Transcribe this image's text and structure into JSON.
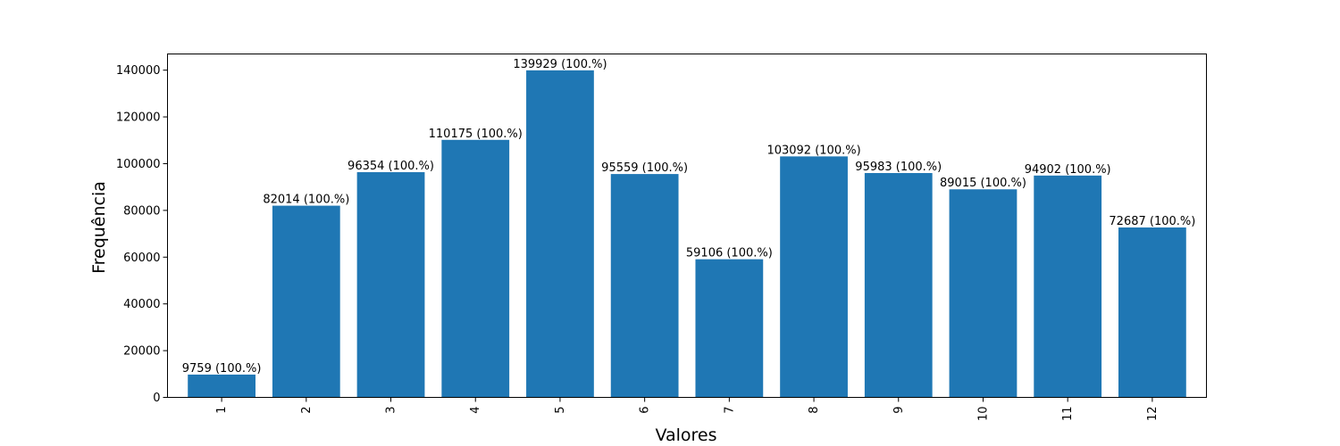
{
  "chart_data": {
    "type": "bar",
    "categories": [
      "1",
      "2",
      "3",
      "4",
      "5",
      "6",
      "7",
      "8",
      "9",
      "10",
      "11",
      "12"
    ],
    "values": [
      9759,
      82014,
      96354,
      110175,
      139929,
      95559,
      59106,
      103092,
      95983,
      89015,
      94902,
      72687
    ],
    "data_labels": [
      "9759 (100.%)",
      "82014 (100.%)",
      "96354 (100.%)",
      "110175 (100.%)",
      "139929 (100.%)",
      "95559 (100.%)",
      "59106 (100.%)",
      "103092 (100.%)",
      "95983 (100.%)",
      "89015 (100.%)",
      "94902 (100.%)",
      "72687 (100.%)"
    ],
    "xlabel": "Valores",
    "ylabel": "Frequência",
    "ylim": [
      0,
      146925
    ],
    "yticks": [
      0,
      20000,
      40000,
      60000,
      80000,
      100000,
      120000,
      140000
    ],
    "x_tick_rotation": "vertical",
    "grid": false,
    "bar_color": "#1f77b4"
  }
}
